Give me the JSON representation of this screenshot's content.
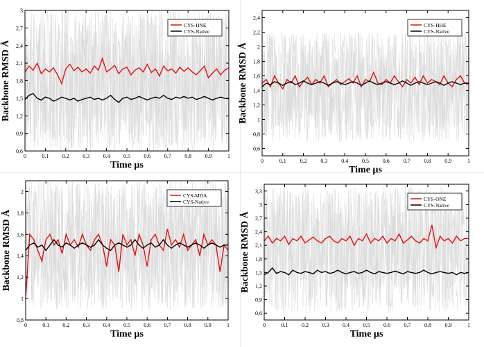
{
  "colors": {
    "modified": "#e01010",
    "native": "#000000",
    "noise": "#d9d9d9",
    "axis": "#000000"
  },
  "chart_data": [
    {
      "type": "line",
      "panel": "top-left",
      "xlabel": "Time µs",
      "ylabel": "Backbone RMSD Å",
      "xlim": [
        0,
        1
      ],
      "ylim": [
        0.6,
        3
      ],
      "xticks": [
        "0",
        "0.1",
        "0.2",
        "0.3",
        "0.4",
        "0.5",
        "0.6",
        "0.7",
        "0.8",
        "0.9",
        "1"
      ],
      "yticks": [
        "0,6",
        "0,9",
        "1,2",
        "1,5",
        "1,8",
        "2,1",
        "2,4",
        "2,7",
        "3"
      ],
      "ytick_values": [
        0.6,
        0.9,
        1.2,
        1.5,
        1.8,
        2.1,
        2.4,
        2.7,
        3.0
      ],
      "noise_range": [
        0.6,
        3.0
      ],
      "legend_position": "top-right",
      "series": [
        {
          "name": "CYS-HNE",
          "color": "#e01010",
          "x": [
            0,
            0.02,
            0.04,
            0.06,
            0.08,
            0.1,
            0.12,
            0.14,
            0.16,
            0.18,
            0.2,
            0.22,
            0.24,
            0.26,
            0.28,
            0.3,
            0.32,
            0.34,
            0.36,
            0.38,
            0.4,
            0.42,
            0.44,
            0.46,
            0.48,
            0.5,
            0.52,
            0.54,
            0.56,
            0.58,
            0.6,
            0.62,
            0.64,
            0.66,
            0.68,
            0.7,
            0.72,
            0.74,
            0.76,
            0.78,
            0.8,
            0.82,
            0.84,
            0.86,
            0.88,
            0.9,
            0.92,
            0.94,
            0.96,
            0.98,
            1.0
          ],
          "values": [
            1.95,
            2.05,
            1.98,
            2.1,
            1.92,
            2.0,
            1.95,
            2.02,
            1.9,
            1.75,
            2.0,
            2.08,
            1.97,
            2.03,
            1.95,
            2.0,
            1.93,
            2.05,
            1.98,
            2.18,
            1.95,
            2.0,
            2.06,
            1.92,
            2.0,
            2.03,
            1.9,
            1.98,
            2.02,
            1.95,
            2.08,
            1.94,
            2.0,
            1.88,
            2.05,
            1.97,
            2.0,
            1.93,
            2.03,
            1.96,
            2.02,
            1.95,
            1.9,
            1.97,
            2.05,
            1.85,
            1.93,
            2.0,
            1.9,
            1.98,
            2.02
          ]
        },
        {
          "name": "CYS-Native",
          "color": "#000000",
          "x": [
            0,
            0.02,
            0.04,
            0.06,
            0.08,
            0.1,
            0.12,
            0.14,
            0.16,
            0.18,
            0.2,
            0.22,
            0.24,
            0.26,
            0.28,
            0.3,
            0.32,
            0.34,
            0.36,
            0.38,
            0.4,
            0.42,
            0.44,
            0.46,
            0.48,
            0.5,
            0.52,
            0.54,
            0.56,
            0.58,
            0.6,
            0.62,
            0.64,
            0.66,
            0.68,
            0.7,
            0.72,
            0.74,
            0.76,
            0.78,
            0.8,
            0.82,
            0.84,
            0.86,
            0.88,
            0.9,
            0.92,
            0.94,
            0.96,
            0.98,
            1.0
          ],
          "values": [
            1.48,
            1.55,
            1.58,
            1.5,
            1.47,
            1.52,
            1.5,
            1.45,
            1.48,
            1.52,
            1.5,
            1.47,
            1.5,
            1.45,
            1.48,
            1.5,
            1.52,
            1.48,
            1.5,
            1.47,
            1.5,
            1.55,
            1.48,
            1.43,
            1.5,
            1.52,
            1.48,
            1.5,
            1.53,
            1.5,
            1.47,
            1.5,
            1.52,
            1.5,
            1.55,
            1.5,
            1.48,
            1.52,
            1.5,
            1.53,
            1.5,
            1.52,
            1.48,
            1.5,
            1.53,
            1.5,
            1.47,
            1.5,
            1.52,
            1.5,
            1.49
          ]
        }
      ]
    },
    {
      "type": "line",
      "panel": "top-right",
      "xlabel": "Time µs",
      "ylabel": "Backbone RMSD Å",
      "xlim": [
        0,
        1
      ],
      "ylim": [
        0.5,
        2.5
      ],
      "xticks": [
        "0",
        "0.1",
        "0.2",
        "0.3",
        "0.4",
        "0.5",
        "0.6",
        "0.7",
        "0.8",
        "0.9",
        "1"
      ],
      "yticks": [
        "0,6",
        "0,8",
        "1",
        "1,2",
        "1,4",
        "1,6",
        "1,8",
        "2",
        "2,2",
        "2,4"
      ],
      "ytick_values": [
        0.6,
        0.8,
        1.0,
        1.2,
        1.4,
        1.6,
        1.8,
        2.0,
        2.2,
        2.4
      ],
      "noise_range": [
        0.7,
        2.2
      ],
      "legend_position": "top-right",
      "series": [
        {
          "name": "CYS-HHE",
          "color": "#e01010",
          "x": [
            0,
            0.02,
            0.04,
            0.06,
            0.08,
            0.1,
            0.12,
            0.14,
            0.16,
            0.18,
            0.2,
            0.22,
            0.24,
            0.26,
            0.28,
            0.3,
            0.32,
            0.34,
            0.36,
            0.38,
            0.4,
            0.42,
            0.44,
            0.46,
            0.48,
            0.5,
            0.52,
            0.54,
            0.56,
            0.58,
            0.6,
            0.62,
            0.64,
            0.66,
            0.68,
            0.7,
            0.72,
            0.74,
            0.76,
            0.78,
            0.8,
            0.82,
            0.84,
            0.86,
            0.88,
            0.9,
            0.92,
            0.94,
            0.96,
            0.98,
            1.0
          ],
          "values": [
            1.5,
            1.55,
            1.45,
            1.6,
            1.5,
            1.42,
            1.55,
            1.5,
            1.6,
            1.45,
            1.52,
            1.58,
            1.48,
            1.55,
            1.5,
            1.6,
            1.45,
            1.5,
            1.55,
            1.48,
            1.52,
            1.56,
            1.5,
            1.6,
            1.45,
            1.55,
            1.52,
            1.65,
            1.5,
            1.48,
            1.55,
            1.5,
            1.6,
            1.52,
            1.45,
            1.55,
            1.5,
            1.58,
            1.48,
            1.6,
            1.5,
            1.55,
            1.52,
            1.48,
            1.6,
            1.5,
            1.45,
            1.55,
            1.6,
            1.5,
            1.48
          ]
        },
        {
          "name": "CYS-Native",
          "color": "#000000",
          "x": [
            0,
            0.02,
            0.04,
            0.06,
            0.08,
            0.1,
            0.12,
            0.14,
            0.16,
            0.18,
            0.2,
            0.22,
            0.24,
            0.26,
            0.28,
            0.3,
            0.32,
            0.34,
            0.36,
            0.38,
            0.4,
            0.42,
            0.44,
            0.46,
            0.48,
            0.5,
            0.52,
            0.54,
            0.56,
            0.58,
            0.6,
            0.62,
            0.64,
            0.66,
            0.68,
            0.7,
            0.72,
            0.74,
            0.76,
            0.78,
            0.8,
            0.82,
            0.84,
            0.86,
            0.88,
            0.9,
            0.92,
            0.94,
            0.96,
            0.98,
            1.0
          ],
          "values": [
            1.45,
            1.5,
            1.48,
            1.52,
            1.5,
            1.47,
            1.5,
            1.52,
            1.48,
            1.5,
            1.53,
            1.5,
            1.48,
            1.5,
            1.52,
            1.5,
            1.47,
            1.5,
            1.52,
            1.5,
            1.48,
            1.5,
            1.52,
            1.5,
            1.47,
            1.5,
            1.53,
            1.5,
            1.48,
            1.5,
            1.52,
            1.5,
            1.48,
            1.5,
            1.53,
            1.5,
            1.47,
            1.5,
            1.52,
            1.5,
            1.48,
            1.5,
            1.52,
            1.5,
            1.47,
            1.5,
            1.52,
            1.5,
            1.48,
            1.5,
            1.5
          ]
        }
      ]
    },
    {
      "type": "line",
      "panel": "bottom-left",
      "xlabel": "Time µs",
      "ylabel": "Backbone RMSD Å",
      "xlim": [
        0,
        1
      ],
      "ylim": [
        0.8,
        2.1
      ],
      "xticks": [
        "0",
        "0.1",
        "0.2",
        "0.3",
        "0.4",
        "0.5",
        "0.6",
        "0.7",
        "0.8",
        "0.9",
        "1"
      ],
      "yticks": [
        "0,8",
        "1",
        "1,2",
        "1,4",
        "1,6",
        "1,8",
        "2"
      ],
      "ytick_values": [
        0.8,
        1.0,
        1.2,
        1.4,
        1.6,
        1.8,
        2.0
      ],
      "noise_range": [
        0.9,
        2.1
      ],
      "legend_position": "top-right",
      "series": [
        {
          "name": "CYS-MDA",
          "color": "#e01010",
          "x": [
            0,
            0.02,
            0.04,
            0.06,
            0.08,
            0.1,
            0.12,
            0.14,
            0.16,
            0.18,
            0.2,
            0.22,
            0.24,
            0.26,
            0.28,
            0.3,
            0.32,
            0.34,
            0.36,
            0.38,
            0.4,
            0.42,
            0.44,
            0.46,
            0.48,
            0.5,
            0.52,
            0.54,
            0.56,
            0.58,
            0.6,
            0.62,
            0.64,
            0.66,
            0.68,
            0.7,
            0.72,
            0.74,
            0.76,
            0.78,
            0.8,
            0.82,
            0.84,
            0.86,
            0.88,
            0.9,
            0.92,
            0.94,
            0.96,
            0.98,
            1.0
          ],
          "values": [
            1.0,
            1.6,
            1.55,
            1.45,
            1.35,
            1.55,
            1.6,
            1.5,
            1.55,
            1.42,
            1.6,
            1.5,
            1.55,
            1.48,
            1.6,
            1.5,
            1.45,
            1.55,
            1.6,
            1.5,
            1.3,
            1.55,
            1.5,
            1.25,
            1.6,
            1.5,
            1.55,
            1.4,
            1.6,
            1.5,
            1.3,
            1.55,
            1.6,
            1.5,
            1.45,
            1.65,
            1.5,
            1.55,
            1.48,
            1.6,
            1.45,
            1.5,
            1.55,
            1.4,
            1.6,
            1.5,
            1.55,
            1.5,
            1.25,
            1.5,
            1.45
          ]
        },
        {
          "name": "CYS-Native",
          "color": "#000000",
          "x": [
            0,
            0.02,
            0.04,
            0.06,
            0.08,
            0.1,
            0.12,
            0.14,
            0.16,
            0.18,
            0.2,
            0.22,
            0.24,
            0.26,
            0.28,
            0.3,
            0.32,
            0.34,
            0.36,
            0.38,
            0.4,
            0.42,
            0.44,
            0.46,
            0.48,
            0.5,
            0.52,
            0.54,
            0.56,
            0.58,
            0.6,
            0.62,
            0.64,
            0.66,
            0.68,
            0.7,
            0.72,
            0.74,
            0.76,
            0.78,
            0.8,
            0.82,
            0.84,
            0.86,
            0.88,
            0.9,
            0.92,
            0.94,
            0.96,
            0.98,
            1.0
          ],
          "values": [
            1.45,
            1.5,
            1.52,
            1.48,
            1.5,
            1.45,
            1.5,
            1.55,
            1.5,
            1.48,
            1.52,
            1.5,
            1.47,
            1.5,
            1.52,
            1.5,
            1.48,
            1.5,
            1.55,
            1.5,
            1.47,
            1.45,
            1.5,
            1.52,
            1.5,
            1.48,
            1.5,
            1.55,
            1.5,
            1.47,
            1.5,
            1.52,
            1.48,
            1.5,
            1.55,
            1.5,
            1.47,
            1.5,
            1.52,
            1.5,
            1.48,
            1.5,
            1.52,
            1.5,
            1.47,
            1.5,
            1.52,
            1.5,
            1.48,
            1.5,
            1.5
          ]
        }
      ]
    },
    {
      "type": "line",
      "panel": "bottom-right",
      "xlabel": "Time µs",
      "ylabel": "Backbone RMSD Å",
      "xlim": [
        0,
        1
      ],
      "ylim": [
        0.45,
        3.45
      ],
      "xticks": [
        "0",
        "0.1",
        "0.2",
        "0.3",
        "0.4",
        "0.5",
        "0.6",
        "0.7",
        "0.8",
        "0.9",
        "1"
      ],
      "yticks": [
        "0,6",
        "0,9",
        "1,2",
        "1,5",
        "1,8",
        "2,1",
        "2,4",
        "2,7",
        "3",
        "3,3"
      ],
      "ytick_values": [
        0.6,
        0.9,
        1.2,
        1.5,
        1.8,
        2.1,
        2.4,
        2.7,
        3.0,
        3.3
      ],
      "noise_range": [
        0.6,
        3.4
      ],
      "legend_position": "top-right",
      "series": [
        {
          "name": "CYS-ONE",
          "color": "#e01010",
          "x": [
            0,
            0.02,
            0.04,
            0.06,
            0.08,
            0.1,
            0.12,
            0.14,
            0.16,
            0.18,
            0.2,
            0.22,
            0.24,
            0.26,
            0.28,
            0.3,
            0.32,
            0.34,
            0.36,
            0.38,
            0.4,
            0.42,
            0.44,
            0.46,
            0.48,
            0.5,
            0.52,
            0.54,
            0.56,
            0.58,
            0.6,
            0.62,
            0.64,
            0.66,
            0.68,
            0.7,
            0.72,
            0.74,
            0.76,
            0.78,
            0.8,
            0.82,
            0.84,
            0.86,
            0.88,
            0.9,
            0.92,
            0.94,
            0.96,
            0.98,
            1.0
          ],
          "values": [
            2.2,
            2.3,
            2.15,
            2.25,
            2.2,
            2.3,
            2.12,
            2.25,
            2.2,
            2.3,
            2.15,
            2.22,
            2.28,
            2.2,
            2.15,
            2.25,
            2.3,
            2.2,
            2.15,
            2.25,
            2.2,
            2.3,
            2.1,
            2.25,
            2.2,
            2.35,
            2.15,
            2.25,
            2.2,
            2.3,
            2.15,
            2.25,
            2.2,
            2.35,
            2.15,
            2.22,
            2.3,
            2.2,
            2.15,
            2.25,
            2.2,
            2.55,
            2.05,
            2.3,
            2.2,
            2.25,
            2.15,
            2.3,
            2.2,
            2.25,
            2.25
          ]
        },
        {
          "name": "CYS-Native",
          "color": "#000000",
          "x": [
            0,
            0.02,
            0.04,
            0.06,
            0.08,
            0.1,
            0.12,
            0.14,
            0.16,
            0.18,
            0.2,
            0.22,
            0.24,
            0.26,
            0.28,
            0.3,
            0.32,
            0.34,
            0.36,
            0.38,
            0.4,
            0.42,
            0.44,
            0.46,
            0.48,
            0.5,
            0.52,
            0.54,
            0.56,
            0.58,
            0.6,
            0.62,
            0.64,
            0.66,
            0.68,
            0.7,
            0.72,
            0.74,
            0.76,
            0.78,
            0.8,
            0.82,
            0.84,
            0.86,
            0.88,
            0.9,
            0.92,
            0.94,
            0.96,
            0.98,
            1.0
          ],
          "values": [
            1.45,
            1.5,
            1.6,
            1.48,
            1.52,
            1.5,
            1.45,
            1.55,
            1.5,
            1.48,
            1.52,
            1.5,
            1.47,
            1.55,
            1.5,
            1.52,
            1.48,
            1.5,
            1.55,
            1.5,
            1.47,
            1.5,
            1.52,
            1.48,
            1.5,
            1.55,
            1.5,
            1.47,
            1.52,
            1.5,
            1.48,
            1.5,
            1.53,
            1.5,
            1.47,
            1.52,
            1.5,
            1.48,
            1.5,
            1.55,
            1.5,
            1.47,
            1.5,
            1.52,
            1.5,
            1.48,
            1.5,
            1.45,
            1.5,
            1.48,
            1.5
          ]
        }
      ]
    }
  ]
}
